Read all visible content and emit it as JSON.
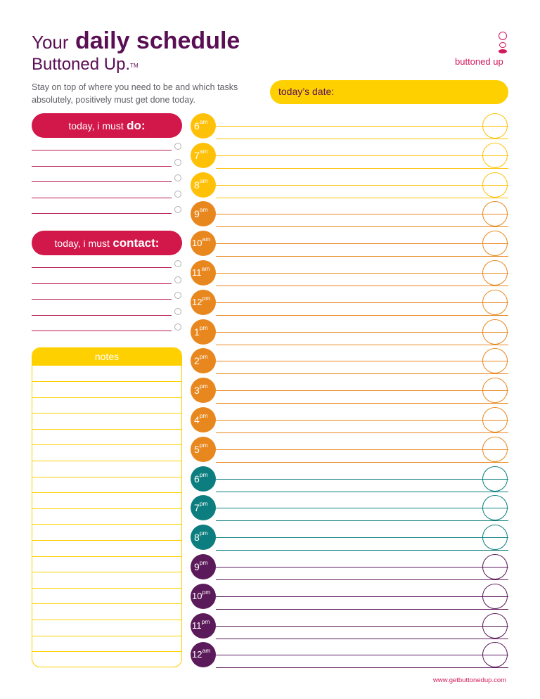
{
  "header": {
    "title_your": "Your",
    "title_daily": "daily schedule",
    "subtitle": "Buttoned Up.",
    "trademark": "TM",
    "intro": "Stay on top of where you need to be and which tasks absolutely, positively must get done today."
  },
  "logo": {
    "text": "buttoned up",
    "mark": "·"
  },
  "date": {
    "label": "today’s date:"
  },
  "todo": {
    "prefix": "today, i must",
    "emphasis": "do:",
    "line_count": 5
  },
  "contact": {
    "prefix": "today, i must",
    "emphasis": "contact:",
    "line_count": 5
  },
  "notes": {
    "label": "notes",
    "line_count": 19
  },
  "schedule": [
    {
      "hour": "6",
      "period": "am"
    },
    {
      "hour": "7",
      "period": "am"
    },
    {
      "hour": "8",
      "period": "am"
    },
    {
      "hour": "9",
      "period": "am"
    },
    {
      "hour": "10",
      "period": "am"
    },
    {
      "hour": "11",
      "period": "am"
    },
    {
      "hour": "12",
      "period": "pm"
    },
    {
      "hour": "1",
      "period": "pm"
    },
    {
      "hour": "2",
      "period": "pm"
    },
    {
      "hour": "3",
      "period": "pm"
    },
    {
      "hour": "4",
      "period": "pm"
    },
    {
      "hour": "5",
      "period": "pm"
    },
    {
      "hour": "6",
      "period": "pm"
    },
    {
      "hour": "7",
      "period": "pm"
    },
    {
      "hour": "8",
      "period": "pm"
    },
    {
      "hour": "9",
      "period": "pm"
    },
    {
      "hour": "10",
      "period": "pm"
    },
    {
      "hour": "11",
      "period": "pm"
    },
    {
      "hour": "12",
      "period": "am"
    }
  ],
  "colors": {
    "brand_purple": "#5a0f54",
    "brand_pink": "#d2185c",
    "pill_red": "#d2184a",
    "yellow": "#ffd000",
    "morning_yellow": "#ffc107",
    "day_orange": "#e8871e",
    "evening_teal": "#0d7e7f",
    "night_purple": "#5b1a5a"
  },
  "footer": {
    "url": "www.getbuttonedup.com"
  }
}
